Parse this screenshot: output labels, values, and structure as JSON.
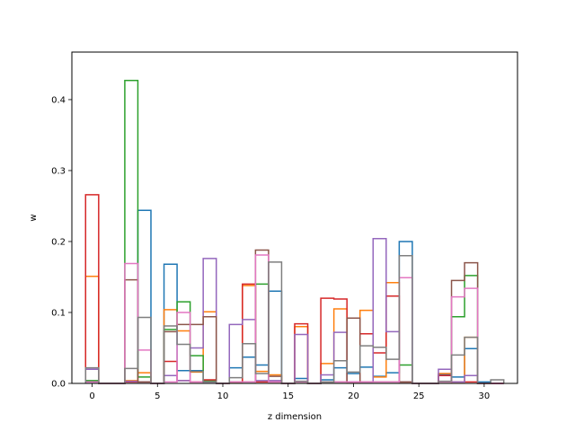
{
  "chart_data": {
    "type": "bar",
    "style": "step-histogram",
    "xlabel": "z dimension",
    "ylabel": "w",
    "xlim": [
      -1.55,
      32.55
    ],
    "ylim": [
      0,
      0.467
    ],
    "xticks": [
      0,
      5,
      10,
      15,
      20,
      25,
      30
    ],
    "yticks": [
      0.0,
      0.1,
      0.2,
      0.3,
      0.4
    ],
    "bin_edges": [
      -0.5,
      0.5,
      1.5,
      2.5,
      3.5,
      4.5,
      5.5,
      6.5,
      7.5,
      8.5,
      9.5,
      10.5,
      11.5,
      12.5,
      13.5,
      14.5,
      15.5,
      16.5,
      17.5,
      18.5,
      19.5,
      20.5,
      21.5,
      22.5,
      23.5,
      24.5,
      25.5,
      26.5,
      27.5,
      28.5,
      29.5,
      30.5,
      31.5
    ],
    "series": [
      {
        "color": "#1f77b4",
        "values": [
          0.002,
          0,
          0,
          0.002,
          0.244,
          0,
          0.168,
          0.018,
          0.018,
          0.002,
          0,
          0.022,
          0.037,
          0.026,
          0.13,
          0,
          0.007,
          0,
          0.005,
          0.022,
          0.014,
          0.023,
          0.01,
          0.015,
          0.2,
          0,
          0,
          0.013,
          0.009,
          0.049,
          0.002,
          0
        ]
      },
      {
        "color": "#ff7f0e",
        "values": [
          0.151,
          0,
          0,
          0.004,
          0.015,
          0,
          0.104,
          0.074,
          0.016,
          0.101,
          0,
          0.002,
          0.138,
          0.017,
          0.012,
          0,
          0.08,
          0,
          0.028,
          0.105,
          0.002,
          0.103,
          0.009,
          0.142,
          0.002,
          0,
          0,
          0.014,
          0.002,
          0.065,
          0,
          0
        ]
      },
      {
        "color": "#2ca02c",
        "values": [
          0.004,
          0,
          0,
          0.427,
          0.009,
          0,
          0.076,
          0.115,
          0.039,
          0.004,
          0,
          0.002,
          0.002,
          0.14,
          0.002,
          0,
          0.002,
          0,
          0.002,
          0.002,
          0.002,
          0.002,
          0.002,
          0.002,
          0.026,
          0,
          0,
          0.002,
          0.094,
          0.152,
          0,
          0
        ]
      },
      {
        "color": "#d62728",
        "values": [
          0.266,
          0,
          0,
          0.002,
          0.002,
          0,
          0.031,
          0.004,
          0.002,
          0.005,
          0,
          0.002,
          0.14,
          0.002,
          0.002,
          0,
          0.084,
          0,
          0.12,
          0.119,
          0.002,
          0.07,
          0.043,
          0.123,
          0.002,
          0,
          0,
          0.011,
          0.002,
          0.002,
          0,
          0
        ]
      },
      {
        "color": "#9467bd",
        "values": [
          0.02,
          0,
          0,
          0.003,
          0.002,
          0,
          0.011,
          0.004,
          0.05,
          0.176,
          0,
          0.083,
          0.09,
          0.004,
          0.004,
          0,
          0.069,
          0,
          0.012,
          0.072,
          0.002,
          0.002,
          0.204,
          0.073,
          0.002,
          0,
          0,
          0.02,
          0.002,
          0.011,
          0,
          0
        ]
      },
      {
        "color": "#8c564b",
        "values": [
          0.002,
          0,
          0,
          0.146,
          0.002,
          0,
          0.073,
          0.083,
          0.083,
          0.094,
          0,
          0.002,
          0.002,
          0.188,
          0.01,
          0,
          0.002,
          0,
          0.002,
          0.002,
          0.092,
          0.002,
          0.002,
          0.002,
          0.002,
          0,
          0,
          0.002,
          0.145,
          0.17,
          0,
          0
        ]
      },
      {
        "color": "#e377c2",
        "values": [
          0.002,
          0,
          0,
          0.169,
          0.047,
          0,
          0.002,
          0.1,
          0.002,
          0.002,
          0,
          0.002,
          0.002,
          0.181,
          0.002,
          0,
          0.002,
          0,
          0.002,
          0.002,
          0.002,
          0.002,
          0.002,
          0.002,
          0.149,
          0,
          0,
          0.002,
          0.122,
          0.134,
          0,
          0
        ]
      },
      {
        "color": "#7f7f7f",
        "values": [
          0.022,
          0,
          0,
          0.021,
          0.093,
          0,
          0.081,
          0.055,
          0.017,
          0.002,
          0,
          0.008,
          0.056,
          0.014,
          0.171,
          0,
          0.003,
          0,
          0.002,
          0.032,
          0.016,
          0.053,
          0.051,
          0.034,
          0.18,
          0,
          0,
          0.003,
          0.04,
          0.065,
          0,
          0.005
        ]
      }
    ]
  }
}
